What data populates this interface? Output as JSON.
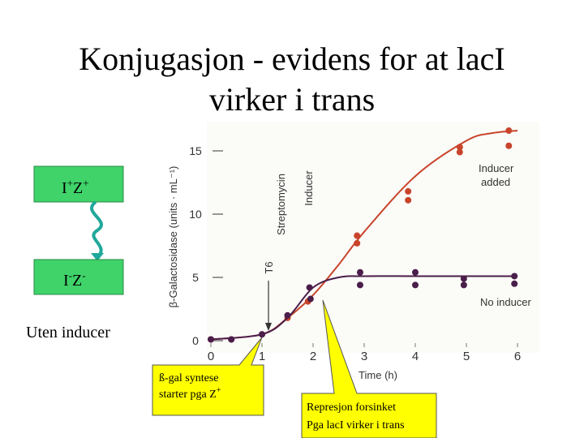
{
  "title_lines": [
    "Konjugasjon - evidens for at lacI",
    "virker i trans"
  ],
  "box1": {
    "parts": [
      "I",
      "+",
      "Z",
      "+"
    ]
  },
  "box2": {
    "parts": [
      "I",
      "-",
      "Z",
      "-"
    ]
  },
  "box_caption": "Uten inducer",
  "callout1": {
    "lines": [
      "ß-gal syntese",
      "starter pga Z"
    ],
    "sup": "+"
  },
  "callout2": {
    "lines": [
      "Represjon forsinket",
      "Pga lacI virker i trans"
    ]
  },
  "chart_data": {
    "type": "scatter",
    "xlabel": "Time (h)",
    "ylabel": "β-Galactosidase (units · mL⁻¹)",
    "xlim": [
      0,
      6
    ],
    "ylim": [
      0,
      17
    ],
    "xticks": [
      0,
      1,
      2,
      3,
      4,
      5,
      6
    ],
    "yticks": [
      0,
      5,
      10,
      15
    ],
    "annotations": [
      "T6",
      "Streptomycin",
      "Inducer"
    ],
    "series": [
      {
        "name": "Inducer added",
        "color": "#c8442a",
        "x": [
          0,
          0.4,
          1,
          1.5,
          1.9,
          2.86,
          2.86,
          3.86,
          3.86,
          4.87,
          4.87,
          5.83,
          5.83
        ],
        "values": [
          0.1,
          0.1,
          0.5,
          1.8,
          3.1,
          8.3,
          7.7,
          11.8,
          11.1,
          15.3,
          14.9,
          16.6,
          15.4
        ],
        "fit": {
          "x": [
            0,
            1,
            1.5,
            2,
            2.5,
            3,
            4,
            5,
            5.5,
            6
          ],
          "values": [
            0.1,
            0.5,
            1.8,
            3.6,
            6,
            8.6,
            13,
            15.8,
            16.4,
            16.6
          ]
        }
      },
      {
        "name": "No inducer",
        "color": "#4a1d4a",
        "x": [
          0,
          0.4,
          1,
          1.5,
          1.93,
          1.95,
          2.92,
          2.92,
          4.0,
          4.0,
          4.95,
          4.95,
          5.94,
          5.94
        ],
        "values": [
          0.1,
          0.1,
          0.5,
          2.0,
          4.2,
          3.3,
          5.4,
          4.4,
          5.4,
          4.4,
          4.9,
          4.4,
          5.1,
          4.5
        ],
        "fit": {
          "x": [
            0,
            1,
            1.5,
            2,
            2.5,
            3,
            4,
            5,
            6
          ],
          "values": [
            0.1,
            0.5,
            1.8,
            4.2,
            5.0,
            5.1,
            5.1,
            5.1,
            5.1
          ]
        }
      }
    ]
  }
}
